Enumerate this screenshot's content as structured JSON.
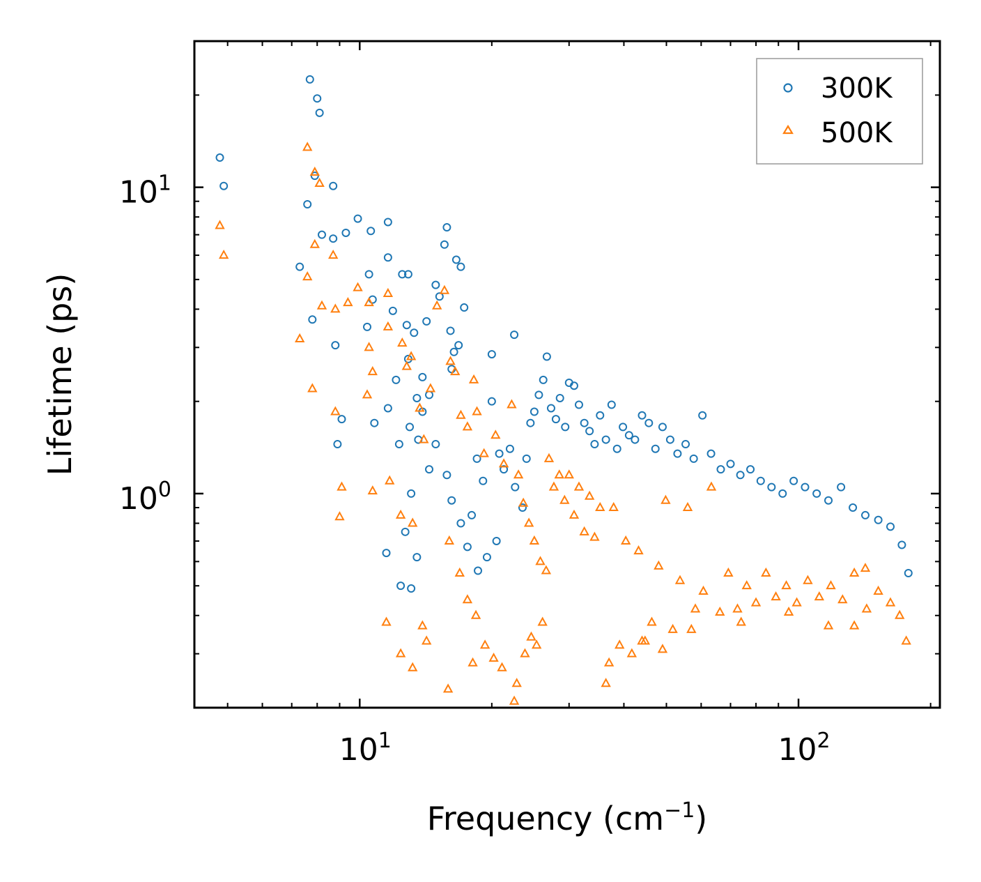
{
  "chart_data": {
    "type": "scatter",
    "title": "",
    "xscale": "log",
    "yscale": "log",
    "xlabel": "Frequency (cm",
    "xlabel_sup": "−1",
    "xlabel_end": ")",
    "ylabel": "Lifetime (ps)",
    "xlim": [
      4.2,
      210
    ],
    "ylim": [
      0.2,
      30
    ],
    "x_ticks": [
      {
        "value": 10,
        "base": "10",
        "exp": "1"
      },
      {
        "value": 100,
        "base": "10",
        "exp": "2"
      }
    ],
    "y_ticks": [
      {
        "value": 1,
        "base": "10",
        "exp": "0"
      },
      {
        "value": 10,
        "base": "10",
        "exp": "1"
      }
    ],
    "legend_position": "top-right",
    "series": [
      {
        "name": "300K",
        "marker": "circle",
        "color": "#1f77b4",
        "points": [
          [
            4.8,
            12.5
          ],
          [
            4.9,
            10.1
          ],
          [
            7.6,
            8.8
          ],
          [
            7.7,
            22.5
          ],
          [
            8.0,
            19.5
          ],
          [
            8.1,
            17.5
          ],
          [
            7.9,
            10.9
          ],
          [
            8.7,
            10.1
          ],
          [
            8.2,
            7.0
          ],
          [
            8.7,
            6.8
          ],
          [
            9.3,
            7.1
          ],
          [
            9.9,
            7.9
          ],
          [
            10.6,
            7.2
          ],
          [
            7.3,
            5.5
          ],
          [
            10.5,
            5.2
          ],
          [
            10.7,
            4.3
          ],
          [
            10.4,
            3.5
          ],
          [
            7.8,
            3.7
          ],
          [
            8.8,
            3.05
          ],
          [
            9.1,
            1.75
          ],
          [
            8.9,
            1.45
          ],
          [
            10.8,
            1.7
          ],
          [
            11.6,
            7.7
          ],
          [
            11.6,
            5.9
          ],
          [
            11.9,
            3.95
          ],
          [
            12.5,
            5.2
          ],
          [
            12.9,
            5.2
          ],
          [
            12.8,
            3.55
          ],
          [
            13.3,
            3.35
          ],
          [
            12.1,
            2.35
          ],
          [
            12.9,
            2.75
          ],
          [
            13.5,
            2.05
          ],
          [
            11.6,
            1.9
          ],
          [
            12.3,
            1.45
          ],
          [
            13.0,
            1.65
          ],
          [
            13.6,
            1.5
          ],
          [
            13.9,
            1.85
          ],
          [
            14.4,
            2.1
          ],
          [
            13.9,
            2.4
          ],
          [
            13.1,
            1.0
          ],
          [
            12.7,
            0.75
          ],
          [
            13.5,
            0.62
          ],
          [
            11.5,
            0.64
          ],
          [
            12.4,
            0.5
          ],
          [
            13.1,
            0.49
          ],
          [
            14.2,
            3.65
          ],
          [
            14.9,
            4.8
          ],
          [
            15.2,
            4.4
          ],
          [
            15.6,
            6.5
          ],
          [
            15.8,
            7.4
          ],
          [
            16.1,
            3.4
          ],
          [
            16.6,
            5.8
          ],
          [
            17.0,
            5.5
          ],
          [
            16.4,
            2.9
          ],
          [
            16.2,
            2.55
          ],
          [
            16.8,
            3.05
          ],
          [
            17.3,
            4.05
          ],
          [
            14.4,
            1.2
          ],
          [
            14.9,
            1.45
          ],
          [
            15.8,
            1.15
          ],
          [
            16.2,
            0.95
          ],
          [
            17.0,
            0.8
          ],
          [
            17.6,
            0.67
          ],
          [
            18.0,
            0.85
          ],
          [
            18.5,
            1.3
          ],
          [
            19.1,
            1.1
          ],
          [
            20.0,
            2.85
          ],
          [
            20.0,
            2.0
          ],
          [
            20.8,
            1.35
          ],
          [
            21.3,
            1.2
          ],
          [
            22.0,
            1.4
          ],
          [
            22.5,
            3.3
          ],
          [
            22.6,
            1.05
          ],
          [
            23.5,
            0.9
          ],
          [
            24.0,
            1.3
          ],
          [
            24.5,
            1.7
          ],
          [
            25.0,
            1.85
          ],
          [
            25.6,
            2.1
          ],
          [
            26.2,
            2.35
          ],
          [
            26.7,
            2.8
          ],
          [
            27.3,
            1.9
          ],
          [
            28.0,
            1.75
          ],
          [
            28.6,
            2.05
          ],
          [
            29.4,
            1.65
          ],
          [
            30.0,
            2.3
          ],
          [
            30.8,
            2.25
          ],
          [
            31.6,
            1.95
          ],
          [
            32.5,
            1.7
          ],
          [
            33.4,
            1.6
          ],
          [
            34.3,
            1.45
          ],
          [
            35.3,
            1.8
          ],
          [
            36.4,
            1.5
          ],
          [
            37.5,
            1.95
          ],
          [
            38.6,
            1.4
          ],
          [
            39.8,
            1.65
          ],
          [
            41.1,
            1.55
          ],
          [
            42.4,
            1.5
          ],
          [
            44.0,
            1.8
          ],
          [
            45.6,
            1.7
          ],
          [
            47.2,
            1.4
          ],
          [
            49.0,
            1.65
          ],
          [
            51.0,
            1.5
          ],
          [
            53.0,
            1.35
          ],
          [
            55.3,
            1.45
          ],
          [
            57.7,
            1.3
          ],
          [
            60.4,
            1.8
          ],
          [
            63.2,
            1.35
          ],
          [
            66.5,
            1.2
          ],
          [
            70.0,
            1.25
          ],
          [
            73.7,
            1.15
          ],
          [
            77.7,
            1.2
          ],
          [
            82.0,
            1.1
          ],
          [
            86.8,
            1.05
          ],
          [
            92.0,
            1.0
          ],
          [
            97.5,
            1.1
          ],
          [
            103.5,
            1.05
          ],
          [
            110.0,
            1.0
          ],
          [
            117.0,
            0.95
          ],
          [
            125.0,
            1.05
          ],
          [
            133.0,
            0.9
          ],
          [
            142.0,
            0.85
          ],
          [
            152.0,
            0.82
          ],
          [
            162.0,
            0.78
          ],
          [
            172.0,
            0.68
          ],
          [
            178.0,
            0.55
          ],
          [
            18.6,
            0.56
          ],
          [
            19.5,
            0.62
          ],
          [
            20.5,
            0.7
          ]
        ]
      },
      {
        "name": "500K",
        "marker": "triangle",
        "color": "#ff7f0e",
        "points": [
          [
            4.8,
            7.5
          ],
          [
            4.9,
            6.0
          ],
          [
            7.6,
            13.5
          ],
          [
            7.9,
            11.2
          ],
          [
            8.1,
            10.3
          ],
          [
            7.9,
            6.5
          ],
          [
            8.7,
            6.0
          ],
          [
            7.3,
            3.2
          ],
          [
            7.6,
            5.1
          ],
          [
            8.2,
            4.1
          ],
          [
            8.8,
            4.0
          ],
          [
            9.4,
            4.2
          ],
          [
            9.9,
            4.7
          ],
          [
            10.5,
            4.2
          ],
          [
            10.5,
            3.0
          ],
          [
            10.7,
            2.5
          ],
          [
            10.4,
            2.1
          ],
          [
            7.8,
            2.2
          ],
          [
            8.8,
            1.85
          ],
          [
            9.1,
            1.05
          ],
          [
            9.0,
            0.84
          ],
          [
            10.7,
            1.02
          ],
          [
            11.6,
            4.5
          ],
          [
            11.6,
            3.5
          ],
          [
            12.5,
            3.1
          ],
          [
            12.8,
            2.6
          ],
          [
            13.1,
            2.8
          ],
          [
            13.7,
            1.9
          ],
          [
            14.5,
            2.2
          ],
          [
            14.0,
            1.5
          ],
          [
            11.7,
            1.1
          ],
          [
            12.4,
            0.85
          ],
          [
            13.2,
            0.8
          ],
          [
            11.5,
            0.38
          ],
          [
            12.4,
            0.3
          ],
          [
            13.2,
            0.27
          ],
          [
            13.9,
            0.37
          ],
          [
            14.2,
            0.33
          ],
          [
            15.0,
            4.1
          ],
          [
            15.6,
            4.6
          ],
          [
            16.1,
            2.7
          ],
          [
            16.5,
            2.5
          ],
          [
            17.0,
            1.8
          ],
          [
            17.6,
            1.65
          ],
          [
            18.2,
            2.35
          ],
          [
            18.5,
            1.85
          ],
          [
            19.2,
            1.35
          ],
          [
            16.0,
            0.7
          ],
          [
            16.9,
            0.55
          ],
          [
            17.6,
            0.45
          ],
          [
            18.4,
            0.4
          ],
          [
            19.3,
            0.32
          ],
          [
            20.2,
            0.29
          ],
          [
            21.1,
            0.27
          ],
          [
            15.9,
            0.23
          ],
          [
            18.1,
            0.28
          ],
          [
            20.4,
            1.55
          ],
          [
            21.3,
            1.25
          ],
          [
            22.2,
            1.95
          ],
          [
            23.0,
            1.15
          ],
          [
            23.6,
            0.93
          ],
          [
            24.3,
            0.8
          ],
          [
            25.0,
            0.7
          ],
          [
            25.8,
            0.6
          ],
          [
            26.6,
            0.56
          ],
          [
            22.5,
            0.21
          ],
          [
            22.8,
            0.24
          ],
          [
            23.8,
            0.3
          ],
          [
            24.6,
            0.34
          ],
          [
            25.3,
            0.32
          ],
          [
            26.1,
            0.38
          ],
          [
            27.0,
            1.3
          ],
          [
            27.7,
            1.05
          ],
          [
            28.5,
            1.15
          ],
          [
            29.3,
            0.95
          ],
          [
            30.0,
            1.15
          ],
          [
            30.8,
            0.85
          ],
          [
            31.6,
            1.05
          ],
          [
            32.5,
            0.75
          ],
          [
            33.4,
            0.98
          ],
          [
            34.3,
            0.72
          ],
          [
            35.3,
            0.9
          ],
          [
            36.4,
            0.24
          ],
          [
            37.0,
            0.28
          ],
          [
            37.9,
            0.9
          ],
          [
            39.1,
            0.32
          ],
          [
            40.4,
            0.7
          ],
          [
            41.7,
            0.3
          ],
          [
            43.2,
            0.65
          ],
          [
            44.7,
            0.33
          ],
          [
            46.3,
            0.38
          ],
          [
            48.0,
            0.58
          ],
          [
            49.8,
            0.95
          ],
          [
            51.7,
            0.36
          ],
          [
            53.7,
            0.52
          ],
          [
            55.9,
            0.9
          ],
          [
            58.2,
            0.42
          ],
          [
            60.7,
            0.48
          ],
          [
            63.3,
            1.05
          ],
          [
            66.2,
            0.41
          ],
          [
            69.2,
            0.55
          ],
          [
            72.6,
            0.42
          ],
          [
            76.2,
            0.5
          ],
          [
            80.0,
            0.44
          ],
          [
            84.3,
            0.55
          ],
          [
            88.8,
            0.46
          ],
          [
            93.8,
            0.5
          ],
          [
            99.1,
            0.44
          ],
          [
            105.0,
            0.52
          ],
          [
            111.5,
            0.46
          ],
          [
            118.5,
            0.5
          ],
          [
            126.0,
            0.45
          ],
          [
            134.0,
            0.55
          ],
          [
            143.0,
            0.42
          ],
          [
            152.0,
            0.48
          ],
          [
            162.0,
            0.44
          ],
          [
            170.0,
            0.4
          ],
          [
            176.0,
            0.33
          ],
          [
            142.0,
            0.57
          ],
          [
            134.0,
            0.37
          ],
          [
            117.0,
            0.37
          ],
          [
            95.0,
            0.41
          ],
          [
            74.0,
            0.38
          ],
          [
            57.0,
            0.36
          ],
          [
            44.0,
            0.33
          ],
          [
            49.0,
            0.31
          ]
        ]
      }
    ]
  }
}
